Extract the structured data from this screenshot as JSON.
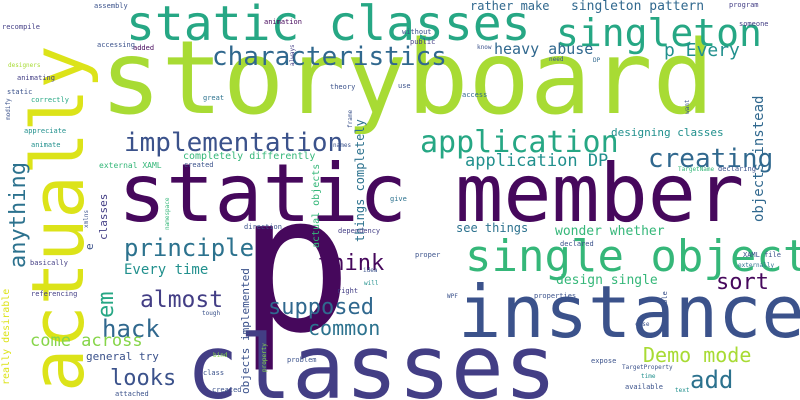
{
  "palette": {
    "dark_purple": "#46085c",
    "indigo": "#433e85",
    "blue": "#3b528b",
    "slate_blue": "#30688e",
    "teal_blue": "#2c728e",
    "teal": "#21908d",
    "sea_green": "#26a784",
    "green": "#35b779",
    "lime": "#86d549",
    "yellow_green": "#a8db34",
    "yellow": "#dce319"
  },
  "words": {
    "storyboard": "storyboard",
    "static_member": "static member",
    "p": "p",
    "instance": "instance",
    "classes_big": "classes",
    "actually": "actually",
    "static_classes": "static classes",
    "singleton": "singleton",
    "single_objects": "single objects",
    "characteristics": "characteristics",
    "implementation": "implementation",
    "application": "application",
    "creating": "creating",
    "application_dp": "application DP",
    "principle": "principle",
    "think": "think",
    "sort": "sort",
    "almost": "almost",
    "supposed": "supposed",
    "hack": "hack",
    "common": "common",
    "demo_mode": "Demo mode",
    "add": "add",
    "looks": "looks",
    "come_across": "come across",
    "every_time": "Every time",
    "heavy_abuse": "heavy abuse",
    "p_every": "p Every",
    "singleton_pattern": "singleton pattern",
    "rather_make": "rather make",
    "designing_classes": "designing classes",
    "wonder_whether": "wonder whether",
    "design_single": "design single",
    "see_things": "see things",
    "general_try": "general try",
    "completely_differently": "completely differently",
    "external_xaml": "external XAML",
    "anything": "anything",
    "em": "em",
    "objects_instead": "objects instead",
    "actual_objects": "actual objects",
    "things_completely": "things completely",
    "objects_implemented": "objects implemented",
    "classes_small": "classes",
    "really_desirable": "really desirable",
    "e": "e",
    "assembly": "assembly",
    "animation": "animation",
    "without": "without",
    "program": "program",
    "recompile": "recompile",
    "accessing": "accessing",
    "added": "added",
    "always": "always",
    "public": "public",
    "know": "know",
    "someone": "someone",
    "animating": "animating",
    "designers": "designers",
    "need": "need",
    "dp": "DP",
    "static": "static",
    "correctly": "correctly",
    "theory": "theory",
    "use": "use",
    "access": "access",
    "great": "great",
    "want": "want",
    "modify": "modify",
    "appreciate": "appreciate",
    "animate": "animate",
    "frame": "frame",
    "names": "names",
    "targetname": "TargetName",
    "declaring": "declaring",
    "created": "created",
    "direction": "direction",
    "xmlns": "xmlns",
    "namespace": "namespace",
    "give": "give",
    "dependency": "dependency",
    "declared": "declared",
    "xaml_file": "XAML file",
    "basically": "basically",
    "referencing": "referencing",
    "idea": "idea",
    "right": "right",
    "will": "will",
    "wpf": "WPF",
    "properties": "properties",
    "proper": "proper",
    "externally": "externally",
    "able": "able",
    "tough": "tough",
    "case": "case",
    "bind": "bind",
    "problem": "problem",
    "expose": "expose",
    "class": "class",
    "property": "property",
    "attached": "attached",
    "targetproperty": "TargetProperty",
    "time": "time",
    "available": "available",
    "text": "text"
  }
}
